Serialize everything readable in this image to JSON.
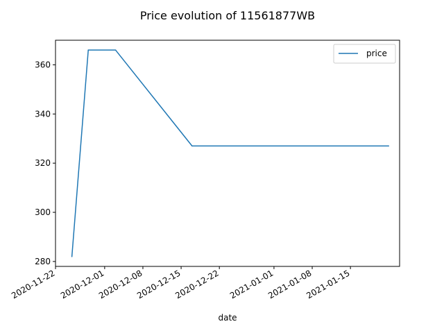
{
  "chart_data": {
    "type": "line",
    "title": "Price evolution of 11561877WB",
    "xlabel": "date",
    "ylabel": "",
    "x_dates": [
      "2020-11-25",
      "2020-11-28",
      "2020-12-03",
      "2020-12-17",
      "2021-01-22"
    ],
    "series": [
      {
        "name": "price",
        "values": [
          282,
          366,
          366,
          327,
          327
        ]
      }
    ],
    "xlim": [
      "2020-11-22",
      "2021-01-24"
    ],
    "ylim": [
      278,
      370
    ],
    "x_ticks": [
      "2020-11-22",
      "2020-12-01",
      "2020-12-08",
      "2020-12-15",
      "2020-12-22",
      "2021-01-01",
      "2021-01-08",
      "2021-01-15"
    ],
    "y_ticks": [
      280,
      300,
      320,
      340,
      360
    ],
    "grid": false,
    "legend_position": "upper right",
    "line_color": "#1f77b4"
  }
}
